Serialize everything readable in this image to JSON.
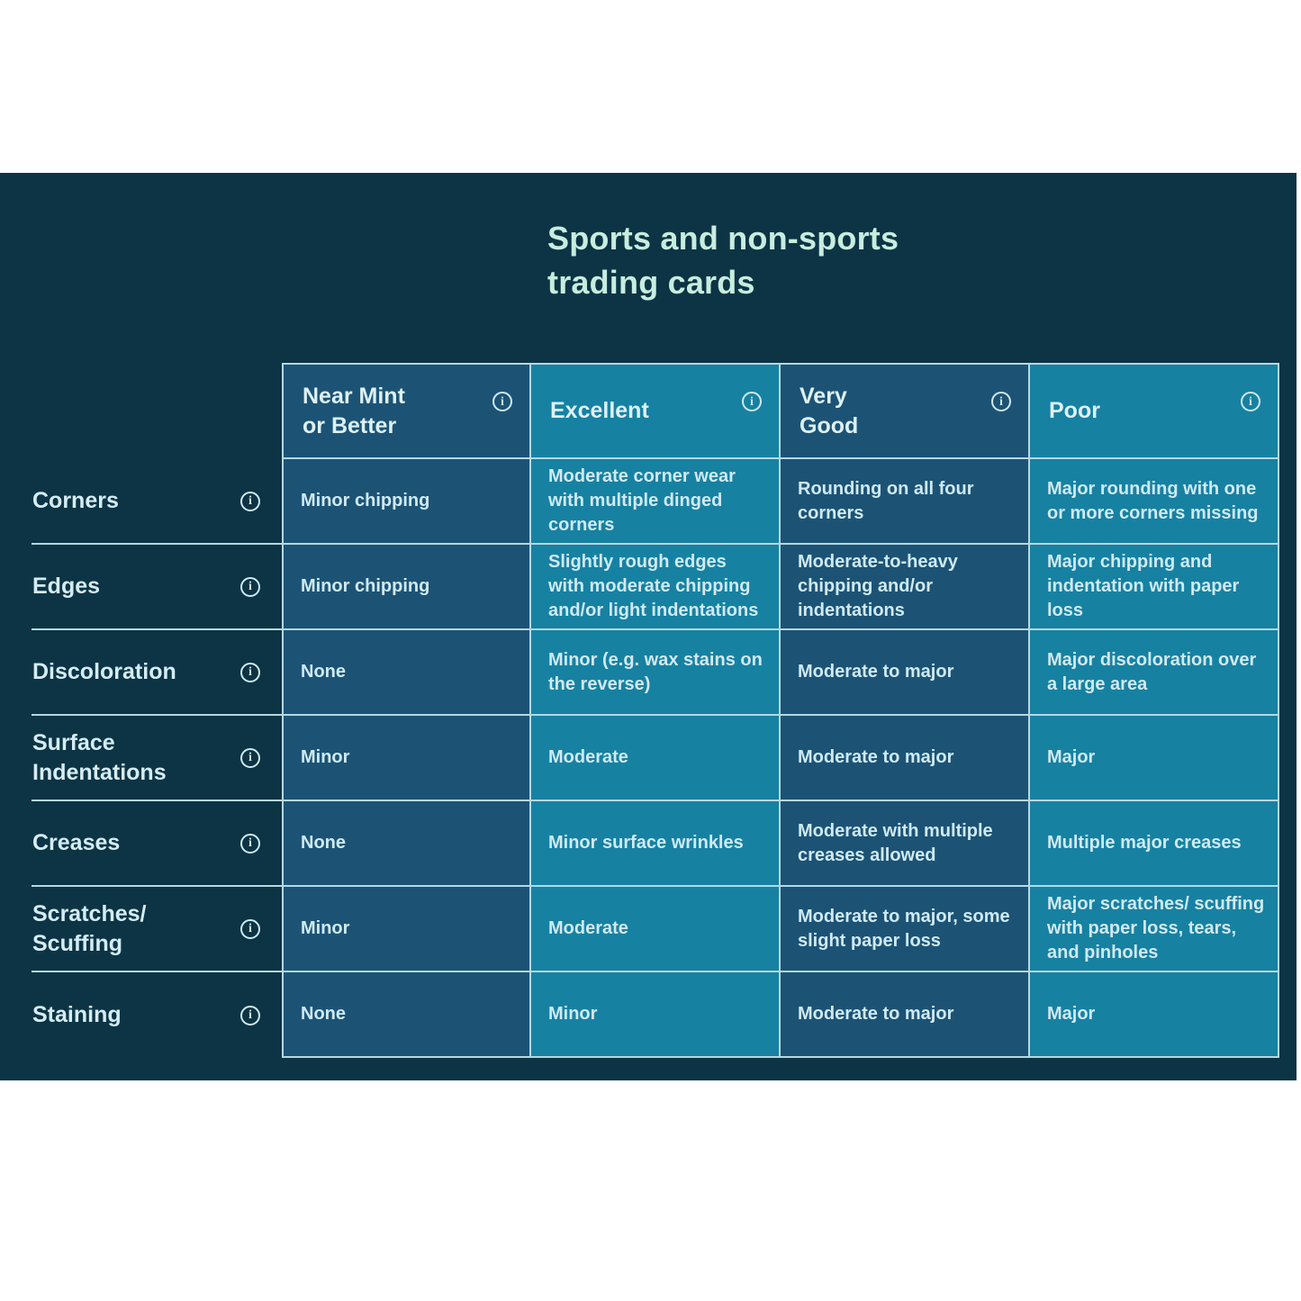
{
  "title": "Sports and non-sports\ntrading cards",
  "info_icon_glyph": "i",
  "colors": {
    "band_background": "#0c3444",
    "column_dark": "#1c5375",
    "column_light": "#1781a2",
    "grid_border": "#b5d8e2",
    "title_text": "#c8eddf",
    "cell_text": "#cfeaf4"
  },
  "columns": [
    {
      "label": "Near Mint\nor Better"
    },
    {
      "label": "Excellent"
    },
    {
      "label": "Very\nGood"
    },
    {
      "label": "Poor"
    }
  ],
  "rows": [
    {
      "label": "Corners",
      "cells": [
        "Minor chipping",
        "Moderate corner wear with multiple dinged corners",
        "Rounding on all four corners",
        "Major rounding with one or more corners missing"
      ]
    },
    {
      "label": "Edges",
      "cells": [
        "Minor chipping",
        "Slightly rough edges with moderate chipping and/or light indentations",
        "Moderate-to-heavy chipping and/or indentations",
        "Major chipping and indentation with paper loss"
      ]
    },
    {
      "label": "Discoloration",
      "cells": [
        "None",
        "Minor (e.g. wax stains on the reverse)",
        "Moderate to major",
        "Major discoloration over a large area"
      ]
    },
    {
      "label": "Surface\nIndentations",
      "cells": [
        "Minor",
        "Moderate",
        "Moderate to major",
        "Major"
      ]
    },
    {
      "label": "Creases",
      "cells": [
        "None",
        "Minor surface wrinkles",
        "Moderate with multiple creases allowed",
        "Multiple major creases"
      ]
    },
    {
      "label": "Scratches/\nScuffing",
      "cells": [
        "Minor",
        "Moderate",
        "Moderate to major, some slight paper loss",
        "Major scratches/ scuffing with paper loss, tears, and pinholes"
      ]
    },
    {
      "label": "Staining",
      "cells": [
        "None",
        "Minor",
        "Moderate to major",
        "Major"
      ]
    }
  ]
}
